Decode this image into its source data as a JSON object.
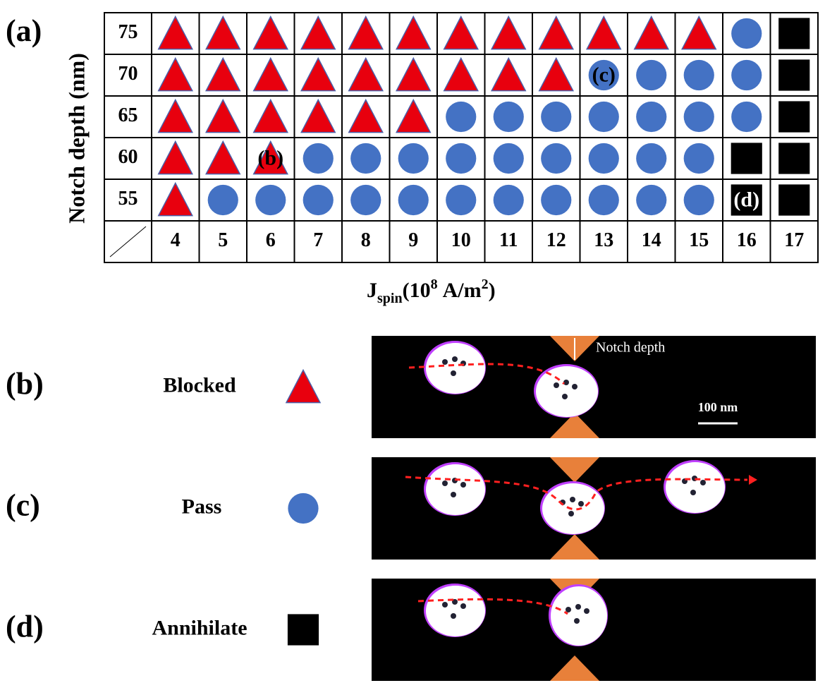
{
  "panel_a": {
    "label": "(a)",
    "y_label": "Notch depth (nm)",
    "x_label": {
      "main": "J",
      "sub": "spin",
      "open": "(10",
      "sup1": "8",
      "unit": "A/m",
      "sup2": "2",
      "close": ")"
    },
    "columns": [
      "4",
      "5",
      "6",
      "7",
      "8",
      "9",
      "10",
      "11",
      "12",
      "13",
      "14",
      "15",
      "16",
      "17"
    ],
    "rows": [
      {
        "label": "75",
        "cells": [
          "Blocked",
          "Blocked",
          "Blocked",
          "Blocked",
          "Blocked",
          "Blocked",
          "Blocked",
          "Blocked",
          "Blocked",
          "Blocked",
          "Blocked",
          "Blocked",
          "Pass",
          "Annihilate"
        ],
        "notes": [
          null,
          null,
          null,
          null,
          null,
          null,
          null,
          null,
          null,
          null,
          null,
          null,
          null,
          null
        ]
      },
      {
        "label": "70",
        "cells": [
          "Blocked",
          "Blocked",
          "Blocked",
          "Blocked",
          "Blocked",
          "Blocked",
          "Blocked",
          "Blocked",
          "Blocked",
          "Pass",
          "Pass",
          "Pass",
          "Pass",
          "Annihilate"
        ],
        "notes": [
          null,
          null,
          null,
          null,
          null,
          null,
          null,
          null,
          null,
          "(c)",
          null,
          null,
          null,
          null
        ]
      },
      {
        "label": "65",
        "cells": [
          "Blocked",
          "Blocked",
          "Blocked",
          "Blocked",
          "Blocked",
          "Blocked",
          "Pass",
          "Pass",
          "Pass",
          "Pass",
          "Pass",
          "Pass",
          "Pass",
          "Annihilate"
        ],
        "notes": [
          null,
          null,
          null,
          null,
          null,
          null,
          null,
          null,
          null,
          null,
          null,
          null,
          null,
          null
        ]
      },
      {
        "label": "60",
        "cells": [
          "Blocked",
          "Blocked",
          "Blocked",
          "Pass",
          "Pass",
          "Pass",
          "Pass",
          "Pass",
          "Pass",
          "Pass",
          "Pass",
          "Pass",
          "Annihilate",
          "Annihilate"
        ],
        "notes": [
          null,
          null,
          "(b)",
          null,
          null,
          null,
          null,
          null,
          null,
          null,
          null,
          null,
          null,
          null
        ]
      },
      {
        "label": "55",
        "cells": [
          "Blocked",
          "Pass",
          "Pass",
          "Pass",
          "Pass",
          "Pass",
          "Pass",
          "Pass",
          "Pass",
          "Pass",
          "Pass",
          "Pass",
          "Annihilate",
          "Annihilate"
        ],
        "notes": [
          null,
          null,
          null,
          null,
          null,
          null,
          null,
          null,
          null,
          null,
          null,
          null,
          "(d)",
          null
        ]
      }
    ]
  },
  "legend": [
    {
      "panel": "(b)",
      "label": "Blocked",
      "notch_label": "Notch depth",
      "scale": "100 nm"
    },
    {
      "panel": "(c)",
      "label": "Pass"
    },
    {
      "panel": "(d)",
      "label": "Annihilate"
    }
  ]
}
